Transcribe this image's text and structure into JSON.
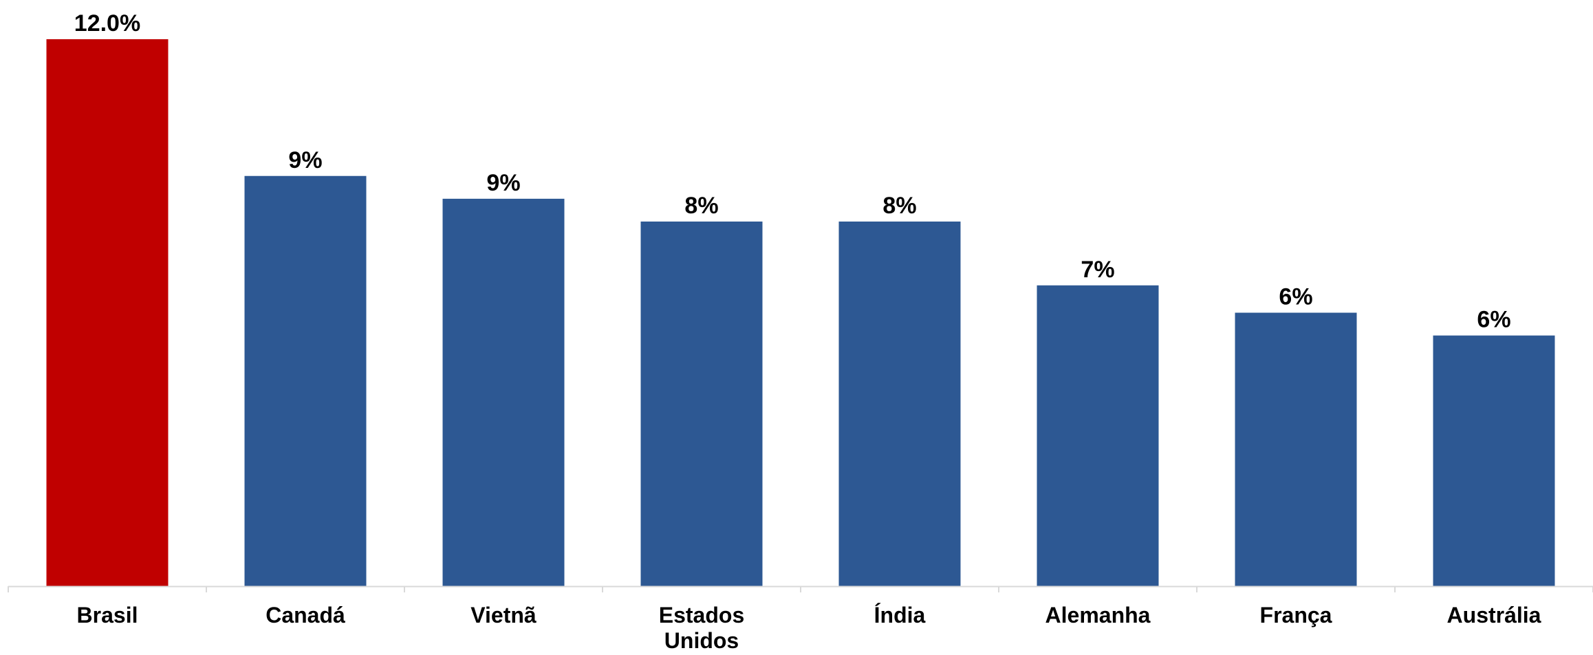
{
  "chart_data": {
    "type": "bar",
    "title": "",
    "xlabel": "",
    "ylabel": "",
    "categories": [
      [
        "Brasil"
      ],
      [
        "Canadá"
      ],
      [
        "Vietnã"
      ],
      [
        "Estados",
        "Unidos"
      ],
      [
        "Índia"
      ],
      [
        "Alemanha"
      ],
      [
        "França"
      ],
      [
        "Austrália"
      ]
    ],
    "values": [
      12.0,
      9.0,
      8.5,
      8.0,
      8.0,
      6.6,
      6.0,
      5.5
    ],
    "data_labels": [
      "12.0%",
      "9%",
      "9%",
      "8%",
      "8%",
      "7%",
      "6%",
      "6%"
    ],
    "colors": [
      "#C00000",
      "#2D5893",
      "#2D5893",
      "#2D5893",
      "#2D5893",
      "#2D5893",
      "#2D5893",
      "#2D5893"
    ],
    "ylim": [
      0,
      12.0
    ],
    "grid": false,
    "legend": "none"
  }
}
